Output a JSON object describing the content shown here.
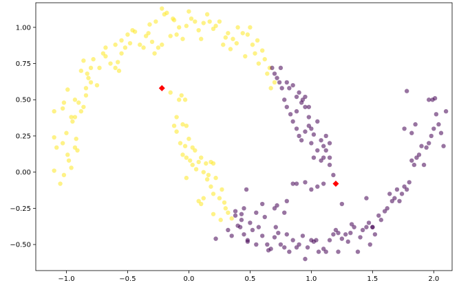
{
  "chart_data": {
    "type": "scatter",
    "title": "",
    "xlabel": "",
    "ylabel": "",
    "xlim": [
      -1.25,
      2.15
    ],
    "ylim": [
      -0.68,
      1.17
    ],
    "xticks": [
      -1.0,
      -0.5,
      0.0,
      0.5,
      1.0,
      1.5,
      2.0
    ],
    "xtick_labels": [
      "−1.0",
      "−0.5",
      "0.0",
      "0.5",
      "1.0",
      "1.5",
      "2.0"
    ],
    "yticks": [
      -0.5,
      -0.25,
      0.0,
      0.25,
      0.5,
      0.75,
      1.0
    ],
    "ytick_labels": [
      "−0.50",
      "−0.25",
      "0.00",
      "0.25",
      "0.50",
      "0.75",
      "1.00"
    ],
    "grid": false,
    "legend": "none",
    "series": [
      {
        "color": "#fde725",
        "points": [
          [
            -1.1,
            0.42
          ],
          [
            -1.1,
            0.24
          ],
          [
            -1.08,
            0.17
          ],
          [
            -1.1,
            0.01
          ],
          [
            -1.05,
            -0.08
          ],
          [
            -1.02,
            -0.02
          ],
          [
            -1.03,
            0.2
          ],
          [
            -1.0,
            0.27
          ],
          [
            -0.99,
            0.12
          ],
          [
            -0.98,
            0.08
          ],
          [
            -0.96,
            0.38
          ],
          [
            -0.95,
            0.35
          ],
          [
            -0.93,
            0.17
          ],
          [
            -0.92,
            0.23
          ],
          [
            -0.91,
            0.15
          ],
          [
            -0.96,
            0.03
          ],
          [
            -0.99,
            0.57
          ],
          [
            -1.03,
            0.44
          ],
          [
            -1.02,
            0.48
          ],
          [
            -0.93,
            0.5
          ],
          [
            -0.93,
            0.38
          ],
          [
            -0.9,
            0.48
          ],
          [
            -0.88,
            0.42
          ],
          [
            -0.86,
            0.45
          ],
          [
            -0.84,
            0.53
          ],
          [
            -0.84,
            0.58
          ],
          [
            -0.82,
            0.65
          ],
          [
            -0.83,
            0.68
          ],
          [
            -0.8,
            0.62
          ],
          [
            -0.88,
            0.7
          ],
          [
            -0.86,
            0.77
          ],
          [
            -0.8,
            0.72
          ],
          [
            -0.78,
            0.78
          ],
          [
            -0.75,
            0.6
          ],
          [
            -0.73,
            0.72
          ],
          [
            -0.7,
            0.82
          ],
          [
            -0.68,
            0.8
          ],
          [
            -0.64,
            0.75
          ],
          [
            -0.6,
            0.88
          ],
          [
            -0.58,
            0.76
          ],
          [
            -0.55,
            0.82
          ],
          [
            -0.55,
            0.91
          ],
          [
            -0.52,
            0.86
          ],
          [
            -0.48,
            0.89
          ],
          [
            -0.46,
            0.98
          ],
          [
            -0.44,
            0.97
          ],
          [
            -0.4,
            0.88
          ],
          [
            -0.37,
            0.86
          ],
          [
            -0.35,
            0.94
          ],
          [
            -0.33,
            0.96
          ],
          [
            -0.3,
            0.9
          ],
          [
            -0.28,
            0.82
          ],
          [
            -0.25,
            0.86
          ],
          [
            -0.32,
            1.02
          ],
          [
            -0.27,
            1.04
          ],
          [
            -0.22,
            0.88
          ],
          [
            -0.22,
            1.13
          ],
          [
            -0.2,
            1.09
          ],
          [
            -0.18,
            1.1
          ],
          [
            -0.15,
            0.94
          ],
          [
            -0.13,
            1.06
          ],
          [
            -0.12,
            1.05
          ],
          [
            -0.1,
            0.95
          ],
          [
            -0.08,
            1.0
          ],
          [
            -0.05,
            0.92
          ],
          [
            -0.02,
            1.01
          ],
          [
            0.0,
            1.11
          ],
          [
            0.02,
            1.06
          ],
          [
            0.05,
            1.04
          ],
          [
            0.08,
            0.98
          ],
          [
            0.1,
            0.92
          ],
          [
            0.12,
            1.03
          ],
          [
            0.15,
            1.09
          ],
          [
            0.17,
            1.04
          ],
          [
            0.2,
            0.99
          ],
          [
            0.22,
            1.01
          ],
          [
            0.25,
            1.04
          ],
          [
            0.28,
            0.88
          ],
          [
            0.3,
            0.93
          ],
          [
            0.32,
            0.96
          ],
          [
            0.34,
            0.85
          ],
          [
            0.36,
            0.92
          ],
          [
            0.39,
            0.89
          ],
          [
            0.4,
            1.0
          ],
          [
            0.44,
            0.96
          ],
          [
            0.46,
            0.8
          ],
          [
            0.48,
            0.95
          ],
          [
            0.5,
            1.0
          ],
          [
            0.52,
            0.88
          ],
          [
            0.54,
            0.82
          ],
          [
            0.56,
            0.91
          ],
          [
            0.57,
            0.75
          ],
          [
            0.6,
            0.84
          ],
          [
            0.62,
            0.78
          ],
          [
            0.64,
            0.68
          ],
          [
            0.66,
            0.72
          ],
          [
            0.67,
            0.58
          ],
          [
            0.7,
            0.62
          ],
          [
            -0.57,
            0.7
          ],
          [
            -0.6,
            0.72
          ],
          [
            -0.68,
            0.86
          ],
          [
            -0.5,
            0.95
          ],
          [
            -0.15,
            0.55
          ],
          [
            -0.08,
            0.5
          ],
          [
            -0.06,
            0.53
          ],
          [
            -0.03,
            0.5
          ],
          [
            -0.1,
            0.38
          ],
          [
            -0.05,
            0.33
          ],
          [
            -0.02,
            0.32
          ],
          [
            -0.12,
            0.32
          ],
          [
            -0.1,
            0.28
          ],
          [
            -0.07,
            0.2
          ],
          [
            -0.03,
            0.18
          ],
          [
            0.0,
            0.23
          ],
          [
            -0.05,
            0.12
          ],
          [
            -0.02,
            0.1
          ],
          [
            0.03,
            0.17
          ],
          [
            0.05,
            0.15
          ],
          [
            0.01,
            0.08
          ],
          [
            0.03,
            0.05
          ],
          [
            0.06,
            0.02
          ],
          [
            0.08,
            0.07
          ],
          [
            0.1,
            0.1
          ],
          [
            0.12,
            0.0
          ],
          [
            0.14,
            0.06
          ],
          [
            0.16,
            -0.02
          ],
          [
            0.18,
            0.07
          ],
          [
            0.2,
            0.06
          ],
          [
            0.15,
            -0.05
          ],
          [
            0.18,
            -0.1
          ],
          [
            0.2,
            -0.15
          ],
          [
            0.22,
            -0.04
          ],
          [
            0.25,
            -0.18
          ],
          [
            0.27,
            -0.12
          ],
          [
            0.29,
            -0.21
          ],
          [
            0.3,
            -0.25
          ],
          [
            -0.02,
            -0.04
          ],
          [
            0.08,
            -0.2
          ],
          [
            0.1,
            -0.22
          ],
          [
            0.12,
            -0.18
          ],
          [
            0.2,
            -0.29
          ],
          [
            0.32,
            -0.28
          ],
          [
            0.35,
            -0.32
          ],
          [
            0.26,
            -0.33
          ]
        ]
      },
      {
        "color": "#440154",
        "points": [
          [
            0.22,
            -0.46
          ],
          [
            0.32,
            -0.4
          ],
          [
            0.35,
            -0.44
          ],
          [
            0.38,
            -0.3
          ],
          [
            0.4,
            -0.37
          ],
          [
            0.43,
            -0.33
          ],
          [
            0.45,
            -0.43
          ],
          [
            0.48,
            -0.47
          ],
          [
            0.5,
            -0.35
          ],
          [
            0.52,
            -0.4
          ],
          [
            0.55,
            -0.5
          ],
          [
            0.57,
            -0.38
          ],
          [
            0.6,
            -0.44
          ],
          [
            0.62,
            -0.31
          ],
          [
            0.64,
            -0.5
          ],
          [
            0.65,
            -0.54
          ],
          [
            0.67,
            -0.53
          ],
          [
            0.7,
            -0.45
          ],
          [
            0.71,
            -0.38
          ],
          [
            0.73,
            -0.42
          ],
          [
            0.75,
            -0.5
          ],
          [
            0.78,
            -0.52
          ],
          [
            0.8,
            -0.43
          ],
          [
            0.82,
            -0.55
          ],
          [
            0.85,
            -0.47
          ],
          [
            0.88,
            -0.52
          ],
          [
            0.9,
            -0.5
          ],
          [
            0.93,
            -0.44
          ],
          [
            0.95,
            -0.6
          ],
          [
            0.97,
            -0.52
          ],
          [
            1.0,
            -0.47
          ],
          [
            1.02,
            -0.48
          ],
          [
            1.04,
            -0.47
          ],
          [
            1.06,
            -0.55
          ],
          [
            1.1,
            -0.53
          ],
          [
            1.12,
            -0.55
          ],
          [
            1.15,
            -0.47
          ],
          [
            1.18,
            -0.43
          ],
          [
            1.2,
            -0.4
          ],
          [
            1.22,
            -0.55
          ],
          [
            1.25,
            -0.46
          ],
          [
            1.28,
            -0.43
          ],
          [
            1.3,
            -0.48
          ],
          [
            1.33,
            -0.36
          ],
          [
            1.35,
            -0.38
          ],
          [
            1.38,
            -0.55
          ],
          [
            1.4,
            -0.45
          ],
          [
            1.42,
            -0.4
          ],
          [
            1.45,
            -0.38
          ],
          [
            1.47,
            -0.35
          ],
          [
            1.5,
            -0.38
          ],
          [
            1.52,
            -0.43
          ],
          [
            1.48,
            -0.5
          ],
          [
            1.55,
            -0.3
          ],
          [
            1.57,
            -0.33
          ],
          [
            1.6,
            -0.27
          ],
          [
            1.62,
            -0.25
          ],
          [
            1.64,
            -0.15
          ],
          [
            1.66,
            -0.2
          ],
          [
            1.68,
            -0.18
          ],
          [
            1.7,
            -0.12
          ],
          [
            1.72,
            -0.2
          ],
          [
            1.74,
            -0.15
          ],
          [
            1.76,
            -0.1
          ],
          [
            1.78,
            -0.12
          ],
          [
            1.8,
            -0.07
          ],
          [
            1.82,
            0.08
          ],
          [
            1.84,
            0.05
          ],
          [
            1.86,
            0.1
          ],
          [
            1.88,
            0.12
          ],
          [
            1.9,
            0.18
          ],
          [
            1.92,
            0.05
          ],
          [
            1.94,
            0.17
          ],
          [
            1.96,
            0.2
          ],
          [
            1.98,
            0.25
          ],
          [
            2.0,
            0.3
          ],
          [
            2.02,
            0.4
          ],
          [
            2.04,
            0.33
          ],
          [
            2.06,
            0.27
          ],
          [
            2.08,
            0.18
          ],
          [
            2.1,
            0.42
          ],
          [
            1.96,
            0.5
          ],
          [
            1.99,
            0.5
          ],
          [
            2.01,
            0.51
          ],
          [
            1.82,
            0.27
          ],
          [
            1.85,
            0.33
          ],
          [
            1.78,
            0.56
          ],
          [
            1.76,
            0.3
          ],
          [
            1.5,
            -0.38
          ],
          [
            1.32,
            -0.42
          ],
          [
            1.22,
            -0.42
          ],
          [
            1.45,
            -0.18
          ],
          [
            1.25,
            -0.22
          ],
          [
            1.1,
            -0.08
          ],
          [
            1.0,
            -0.12
          ],
          [
            0.95,
            -0.07
          ],
          [
            0.85,
            -0.08
          ],
          [
            0.72,
            -0.23
          ],
          [
            0.47,
            -0.12
          ],
          [
            0.45,
            -0.25
          ],
          [
            0.55,
            -0.28
          ],
          [
            0.48,
            -0.48
          ],
          [
            0.42,
            -0.38
          ],
          [
            0.38,
            -0.27
          ],
          [
            0.43,
            -0.29
          ],
          [
            0.6,
            -0.22
          ],
          [
            0.7,
            -0.25
          ],
          [
            0.78,
            -0.28
          ],
          [
            0.8,
            -0.2
          ],
          [
            0.88,
            -0.08
          ],
          [
            1.05,
            -0.1
          ],
          [
            1.15,
            0.05
          ],
          [
            1.18,
            -0.02
          ],
          [
            1.15,
            0.2
          ],
          [
            1.12,
            0.25
          ],
          [
            1.1,
            0.1
          ],
          [
            1.08,
            0.08
          ],
          [
            1.05,
            0.15
          ],
          [
            1.02,
            0.1
          ],
          [
            1.0,
            0.2
          ],
          [
            0.98,
            0.32
          ],
          [
            0.95,
            0.28
          ],
          [
            0.92,
            0.22
          ],
          [
            0.9,
            0.25
          ],
          [
            0.88,
            0.3
          ],
          [
            0.85,
            0.35
          ],
          [
            0.83,
            0.4
          ],
          [
            0.8,
            0.45
          ],
          [
            0.78,
            0.5
          ],
          [
            0.76,
            0.58
          ],
          [
            0.74,
            0.62
          ],
          [
            0.72,
            0.65
          ],
          [
            0.7,
            0.68
          ],
          [
            0.68,
            0.72
          ],
          [
            0.75,
            0.72
          ],
          [
            0.8,
            0.62
          ],
          [
            0.85,
            0.6
          ],
          [
            0.9,
            0.55
          ],
          [
            0.92,
            0.48
          ],
          [
            0.95,
            0.45
          ],
          [
            0.98,
            0.38
          ],
          [
            1.0,
            0.3
          ],
          [
            1.02,
            0.26
          ],
          [
            1.05,
            0.35
          ],
          [
            1.08,
            0.22
          ],
          [
            1.1,
            0.18
          ],
          [
            1.12,
            0.15
          ],
          [
            1.15,
            0.1
          ],
          [
            0.98,
            0.45
          ],
          [
            0.95,
            0.52
          ],
          [
            0.93,
            0.5
          ],
          [
            0.88,
            0.42
          ],
          [
            0.88,
            0.52
          ],
          [
            0.82,
            0.58
          ]
        ]
      },
      {
        "color": "#ff0000",
        "marker": "diamond",
        "points": [
          [
            -0.22,
            0.58
          ],
          [
            1.2,
            -0.08
          ]
        ]
      }
    ]
  }
}
